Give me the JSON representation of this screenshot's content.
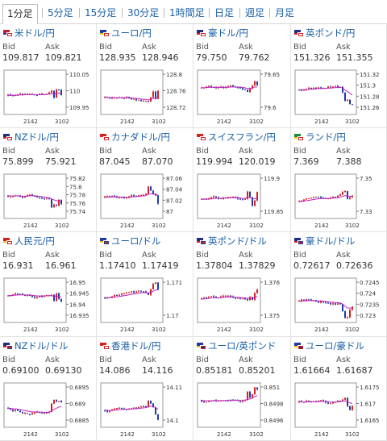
{
  "tabs": [
    {
      "label": "1分足",
      "active": true
    },
    {
      "label": "5分足",
      "active": false
    },
    {
      "label": "15分足",
      "active": false
    },
    {
      "label": "30分足",
      "active": false
    },
    {
      "label": "1時間足",
      "active": false
    },
    {
      "label": "日足",
      "active": false
    },
    {
      "label": "週足",
      "active": false
    },
    {
      "label": "月足",
      "active": false
    }
  ],
  "labels": {
    "bid": "Bid",
    "ask": "Ask"
  },
  "colors": {
    "link": "#1a5fa8",
    "up": "#d52020",
    "down": "#1f3aa8",
    "ma": "#c020c0"
  },
  "pairs": [
    {
      "name": "米ドル/円",
      "bid": "109.817",
      "ask": "109.821",
      "flags": [
        "us",
        "jp"
      ],
      "chart_data": {
        "type": "candlestick",
        "x_ticks": [
          "2142",
          "3102"
        ],
        "y_ticks": [
          "110.05",
          "110",
          "109.95"
        ]
      }
    },
    {
      "name": "ユーロ/円",
      "bid": "128.935",
      "ask": "128.946",
      "flags": [
        "eu",
        "jp"
      ],
      "chart_data": {
        "type": "candlestick",
        "x_ticks": [
          "2142",
          "3102"
        ],
        "y_ticks": [
          "128.8",
          "128.76",
          "128.72"
        ]
      }
    },
    {
      "name": "豪ドル/円",
      "bid": "79.750",
      "ask": "79.762",
      "flags": [
        "au",
        "jp"
      ],
      "chart_data": {
        "type": "candlestick",
        "x_ticks": [
          "2142",
          "3102"
        ],
        "y_ticks": [
          "79.65",
          "79.6"
        ]
      }
    },
    {
      "name": "英ポンド/円",
      "bid": "151.326",
      "ask": "151.355",
      "flags": [
        "gb",
        "jp"
      ],
      "chart_data": {
        "type": "candlestick",
        "x_ticks": [
          "2142",
          "3102"
        ],
        "y_ticks": [
          "151.32",
          "151.3",
          "151.28",
          "151.26"
        ]
      }
    },
    {
      "name": "NZドル/円",
      "bid": "75.899",
      "ask": "75.921",
      "flags": [
        "nz",
        "jp"
      ],
      "chart_data": {
        "type": "candlestick",
        "x_ticks": [
          "2142",
          "3102"
        ],
        "y_ticks": [
          "75.82",
          "75.8",
          "75.78",
          "75.76",
          "75.74"
        ]
      }
    },
    {
      "name": "カナダドル/円",
      "bid": "87.045",
      "ask": "87.070",
      "flags": [
        "ca",
        "jp"
      ],
      "chart_data": {
        "type": "candlestick",
        "x_ticks": [
          "2142",
          "3102"
        ],
        "y_ticks": [
          "87.06",
          "87.04",
          "87.02",
          "87"
        ]
      }
    },
    {
      "name": "スイスフラン/円",
      "bid": "119.994",
      "ask": "120.019",
      "flags": [
        "ch",
        "jp"
      ],
      "chart_data": {
        "type": "candlestick",
        "x_ticks": [
          "2142",
          "3102"
        ],
        "y_ticks": [
          "119.9",
          "119.85"
        ]
      }
    },
    {
      "name": "ランド/円",
      "bid": "7.369",
      "ask": "7.388",
      "flags": [
        "za",
        "jp"
      ],
      "chart_data": {
        "type": "candlestick",
        "x_ticks": [
          "2142",
          "3102"
        ],
        "y_ticks": [
          "7.35",
          "7.33"
        ]
      }
    },
    {
      "name": "人民元/円",
      "bid": "16.931",
      "ask": "16.961",
      "flags": [
        "cn",
        "jp"
      ],
      "chart_data": {
        "type": "candlestick",
        "x_ticks": [
          "2142",
          "3102"
        ],
        "y_ticks": [
          "16.95",
          "16.945",
          "16.94",
          "16.935"
        ]
      }
    },
    {
      "name": "ユーロ/ドル",
      "bid": "1.17410",
      "ask": "1.17419",
      "flags": [
        "eu",
        "us"
      ],
      "chart_data": {
        "type": "candlestick",
        "x_ticks": [
          "2142",
          "3102"
        ],
        "y_ticks": [
          "1.171",
          "1.17"
        ]
      }
    },
    {
      "name": "英ポンド/ドル",
      "bid": "1.37804",
      "ask": "1.37829",
      "flags": [
        "gb",
        "us"
      ],
      "chart_data": {
        "type": "candlestick",
        "x_ticks": [
          "2142",
          "3102"
        ],
        "y_ticks": [
          "1.376",
          "1.375"
        ]
      }
    },
    {
      "name": "豪ドル/ドル",
      "bid": "0.72617",
      "ask": "0.72636",
      "flags": [
        "au",
        "us"
      ],
      "chart_data": {
        "type": "candlestick",
        "x_ticks": [
          "2142",
          "3102"
        ],
        "y_ticks": [
          "0.7245",
          "0.724",
          "0.7235",
          "0.723"
        ]
      }
    },
    {
      "name": "NZドル/ドル",
      "bid": "0.69100",
      "ask": "0.69130",
      "flags": [
        "nz",
        "us"
      ],
      "chart_data": {
        "type": "candlestick",
        "x_ticks": [
          "2142",
          "3102"
        ],
        "y_ticks": [
          "0.6895",
          "0.689",
          "0.6885"
        ]
      }
    },
    {
      "name": "香港ドル/円",
      "bid": "14.086",
      "ask": "14.116",
      "flags": [
        "hk",
        "jp"
      ],
      "chart_data": {
        "type": "candlestick",
        "x_ticks": [
          "2142",
          "3102"
        ],
        "y_ticks": [
          "14.11",
          "14.1"
        ]
      }
    },
    {
      "name": "ユーロ/英ポンド",
      "bid": "0.85181",
      "ask": "0.85201",
      "flags": [
        "eu",
        "gb"
      ],
      "chart_data": {
        "type": "candlestick",
        "x_ticks": [
          "2142",
          "3102"
        ],
        "y_ticks": [
          "0.851",
          "0.8498",
          "0.8496"
        ]
      }
    },
    {
      "name": "ユーロ/豪ドル",
      "bid": "1.61664",
      "ask": "1.61687",
      "flags": [
        "eu",
        "au"
      ],
      "chart_data": {
        "type": "candlestick",
        "x_ticks": [
          "2142",
          "3102"
        ],
        "y_ticks": [
          "1.6175",
          "1.617",
          "1.6165"
        ]
      }
    }
  ]
}
